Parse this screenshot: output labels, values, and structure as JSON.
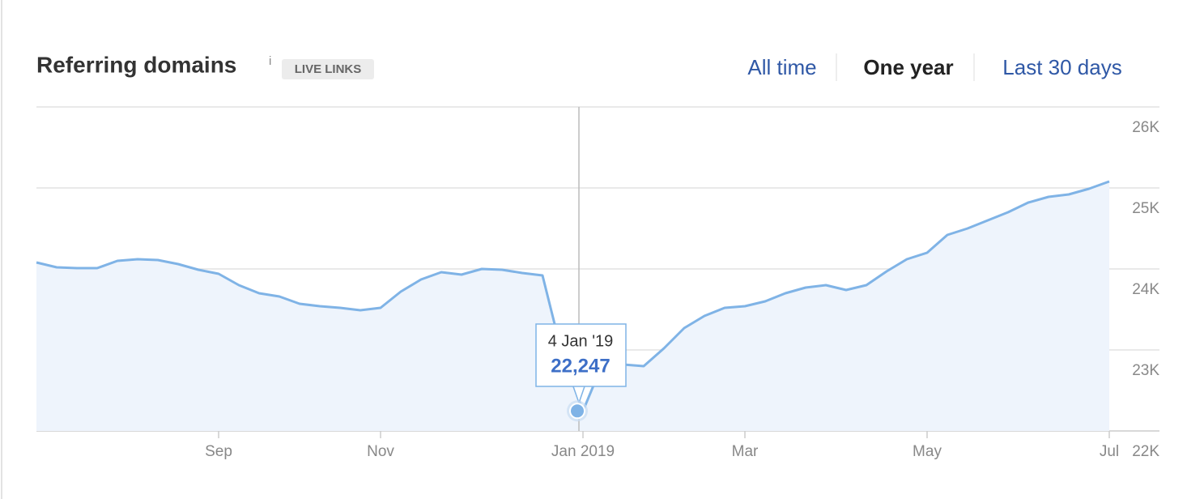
{
  "chart_data": {
    "type": "line",
    "title": "Referring domains",
    "info": "i",
    "badge": "LIVE LINKS",
    "tabs": [
      "All time",
      "One year",
      "Last 30 days"
    ],
    "active_tab": 1,
    "categories": [
      null,
      null,
      null,
      null,
      null,
      null,
      null,
      null,
      null,
      "Sep",
      null,
      null,
      null,
      null,
      null,
      null,
      null,
      "Nov",
      null,
      null,
      null,
      null,
      null,
      null,
      null,
      null,
      null,
      "Jan 2019",
      null,
      null,
      null,
      null,
      null,
      null,
      null,
      "Mar",
      null,
      null,
      null,
      null,
      null,
      null,
      null,
      null,
      "May",
      null,
      null,
      null,
      null,
      null,
      null,
      null,
      null,
      "Jul"
    ],
    "series": [
      {
        "name": "Referring domains",
        "color": "#7fb3e6",
        "fill": "#eef4fc",
        "values": [
          24080,
          24020,
          24010,
          24010,
          24100,
          24120,
          24110,
          24060,
          23990,
          23940,
          23800,
          23700,
          23660,
          23570,
          23540,
          23520,
          23490,
          23520,
          23720,
          23870,
          23960,
          23930,
          24000,
          23990,
          23950,
          23920,
          22920,
          22247,
          22850,
          22820,
          22800,
          23020,
          23270,
          23420,
          23520,
          23540,
          23600,
          23700,
          23770,
          23800,
          23740,
          23800,
          23970,
          24120,
          24200,
          24420,
          24500,
          24600,
          24700,
          24820,
          24890,
          24920,
          24990,
          25080
        ]
      }
    ],
    "ylim": [
      22000,
      26000
    ],
    "yticks": [
      {
        "value": 22000,
        "label": "22K"
      },
      {
        "value": 23000,
        "label": "23K"
      },
      {
        "value": 24000,
        "label": "24K"
      },
      {
        "value": 25000,
        "label": "25K"
      },
      {
        "value": 26000,
        "label": "26K"
      }
    ],
    "grid": true,
    "tooltip": {
      "index": 27,
      "date": "4 Jan '19",
      "label": "22,247"
    }
  }
}
